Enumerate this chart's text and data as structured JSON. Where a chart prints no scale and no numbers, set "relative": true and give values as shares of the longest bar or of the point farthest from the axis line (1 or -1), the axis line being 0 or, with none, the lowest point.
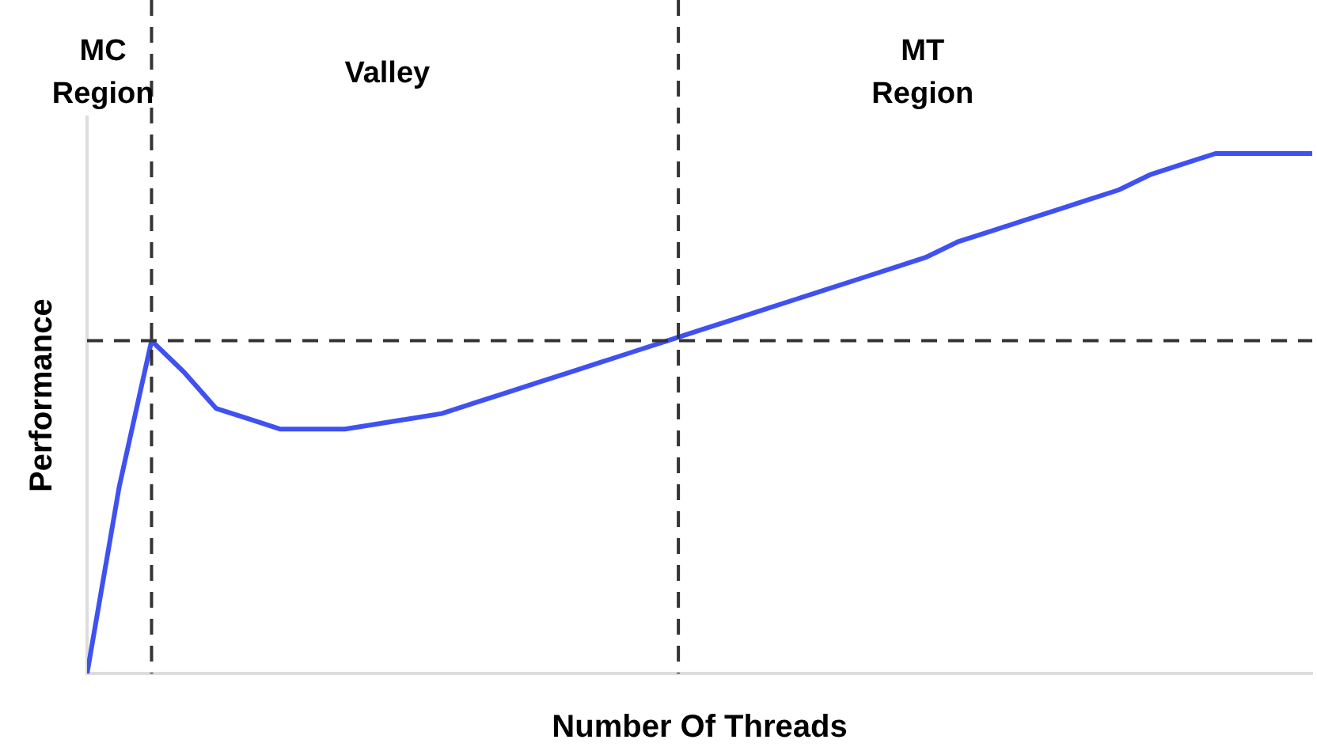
{
  "chart_data": {
    "type": "line",
    "relative": true,
    "xlabel": "Number Of Threads",
    "ylabel": "Performance",
    "annotations": [
      "MC Region",
      "Valley",
      "MT Region"
    ],
    "categories": [
      null,
      null,
      null,
      null,
      null,
      null,
      null,
      null,
      null,
      null,
      null,
      null,
      null,
      null,
      null,
      null,
      null,
      null,
      null,
      null,
      null,
      null,
      null,
      null,
      null,
      null,
      null,
      null,
      null,
      null,
      null,
      null,
      null,
      null,
      null,
      null,
      null,
      null,
      null
    ],
    "marker": "none",
    "line_style": "solid",
    "series": [
      {
        "color": "#3f51f0",
        "values": [
          0,
          0.36,
          0.64,
          0.58,
          0.51,
          0.49,
          0.47,
          0.47,
          0.47,
          0.48,
          0.49,
          0.5,
          0.52,
          0.54,
          0.56,
          0.58,
          0.6,
          0.62,
          0.64,
          0.66,
          0.68,
          0.7,
          0.72,
          0.74,
          0.76,
          0.78,
          0.8,
          0.83,
          0.85,
          0.87,
          0.89,
          0.91,
          0.93,
          0.96,
          0.98,
          1,
          1,
          1,
          1
        ]
      }
    ],
    "ref_lines": [
      {
        "axis": "y",
        "value": 0.64
      }
    ]
  }
}
